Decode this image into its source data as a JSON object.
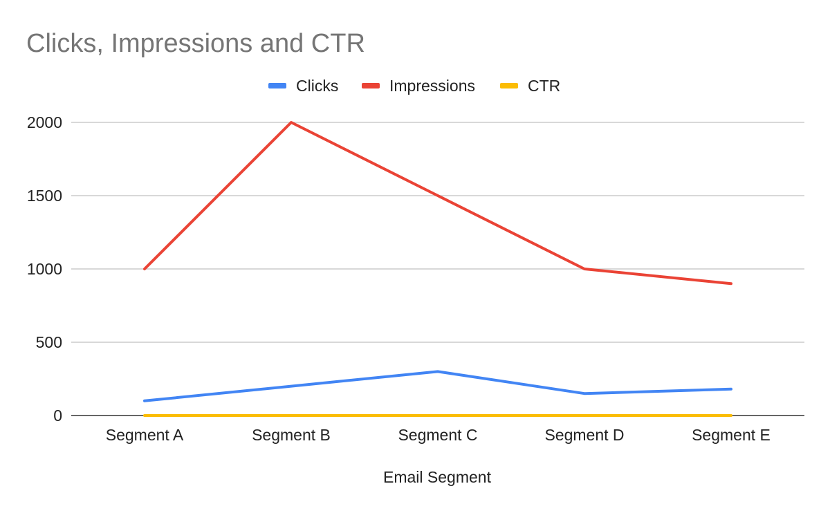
{
  "chart_data": {
    "type": "line",
    "title": "Clicks, Impressions and CTR",
    "xlabel": "Email Segment",
    "ylabel": "",
    "categories": [
      "Segment A",
      "Segment B",
      "Segment C",
      "Segment D",
      "Segment E"
    ],
    "ylim": [
      0,
      2000
    ],
    "yticks": [
      0,
      500,
      1000,
      1500,
      2000
    ],
    "ytick_labels": [
      "0",
      "500",
      "1000",
      "1500",
      "2000"
    ],
    "grid": true,
    "legend_position": "top-center",
    "series": [
      {
        "name": "Clicks",
        "color": "#4285F4",
        "values": [
          100,
          200,
          300,
          150,
          180
        ]
      },
      {
        "name": "Impressions",
        "color": "#EA4335",
        "values": [
          1000,
          2000,
          1500,
          1000,
          900
        ]
      },
      {
        "name": "CTR",
        "color": "#FBBC04",
        "values": [
          0.1,
          0.1,
          0.2,
          0.15,
          0.2
        ]
      }
    ]
  }
}
